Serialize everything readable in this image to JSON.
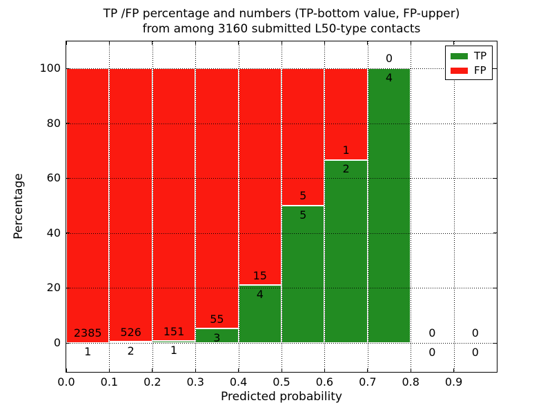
{
  "figure": {
    "title_line1": "TP /FP percentage and numbers (TP-bottom value, FP-upper)",
    "title_line2": "from among 3160 submitted L50-type contacts"
  },
  "chart_data": {
    "type": "bar",
    "stacked": true,
    "title": "TP /FP percentage and numbers (TP-bottom value, FP-upper)\nfrom among 3160 submitted L50-type contacts",
    "xlabel": "Predicted probability",
    "ylabel": "Percentage",
    "total_submitted": 3160,
    "bin_edges": [
      0.0,
      0.1,
      0.2,
      0.3,
      0.4,
      0.5,
      0.6,
      0.7,
      0.8,
      0.9,
      1.0
    ],
    "series": [
      {
        "name": "TP",
        "color": "#228b22",
        "counts": [
          1,
          2,
          1,
          3,
          4,
          5,
          2,
          4,
          0,
          0
        ]
      },
      {
        "name": "FP",
        "color": "#fb1a10",
        "counts": [
          2385,
          526,
          151,
          55,
          15,
          5,
          1,
          0,
          0,
          0
        ]
      }
    ],
    "tp_percent_by_bin": [
      0.04,
      0.38,
      0.66,
      5.17,
      21.05,
      50.0,
      66.67,
      100.0,
      null,
      null
    ],
    "x_tick_labels": [
      "0.0",
      "0.1",
      "0.2",
      "0.3",
      "0.4",
      "0.5",
      "0.6",
      "0.7",
      "0.8",
      "0.9"
    ],
    "y_ticks": [
      0,
      20,
      40,
      60,
      80,
      100
    ],
    "xlim": [
      0.0,
      1.0
    ],
    "ylim": [
      -10.5,
      110.2
    ],
    "grid": "dotted",
    "legend_position": "upper right",
    "bar_edge_color": "#ffffff"
  }
}
